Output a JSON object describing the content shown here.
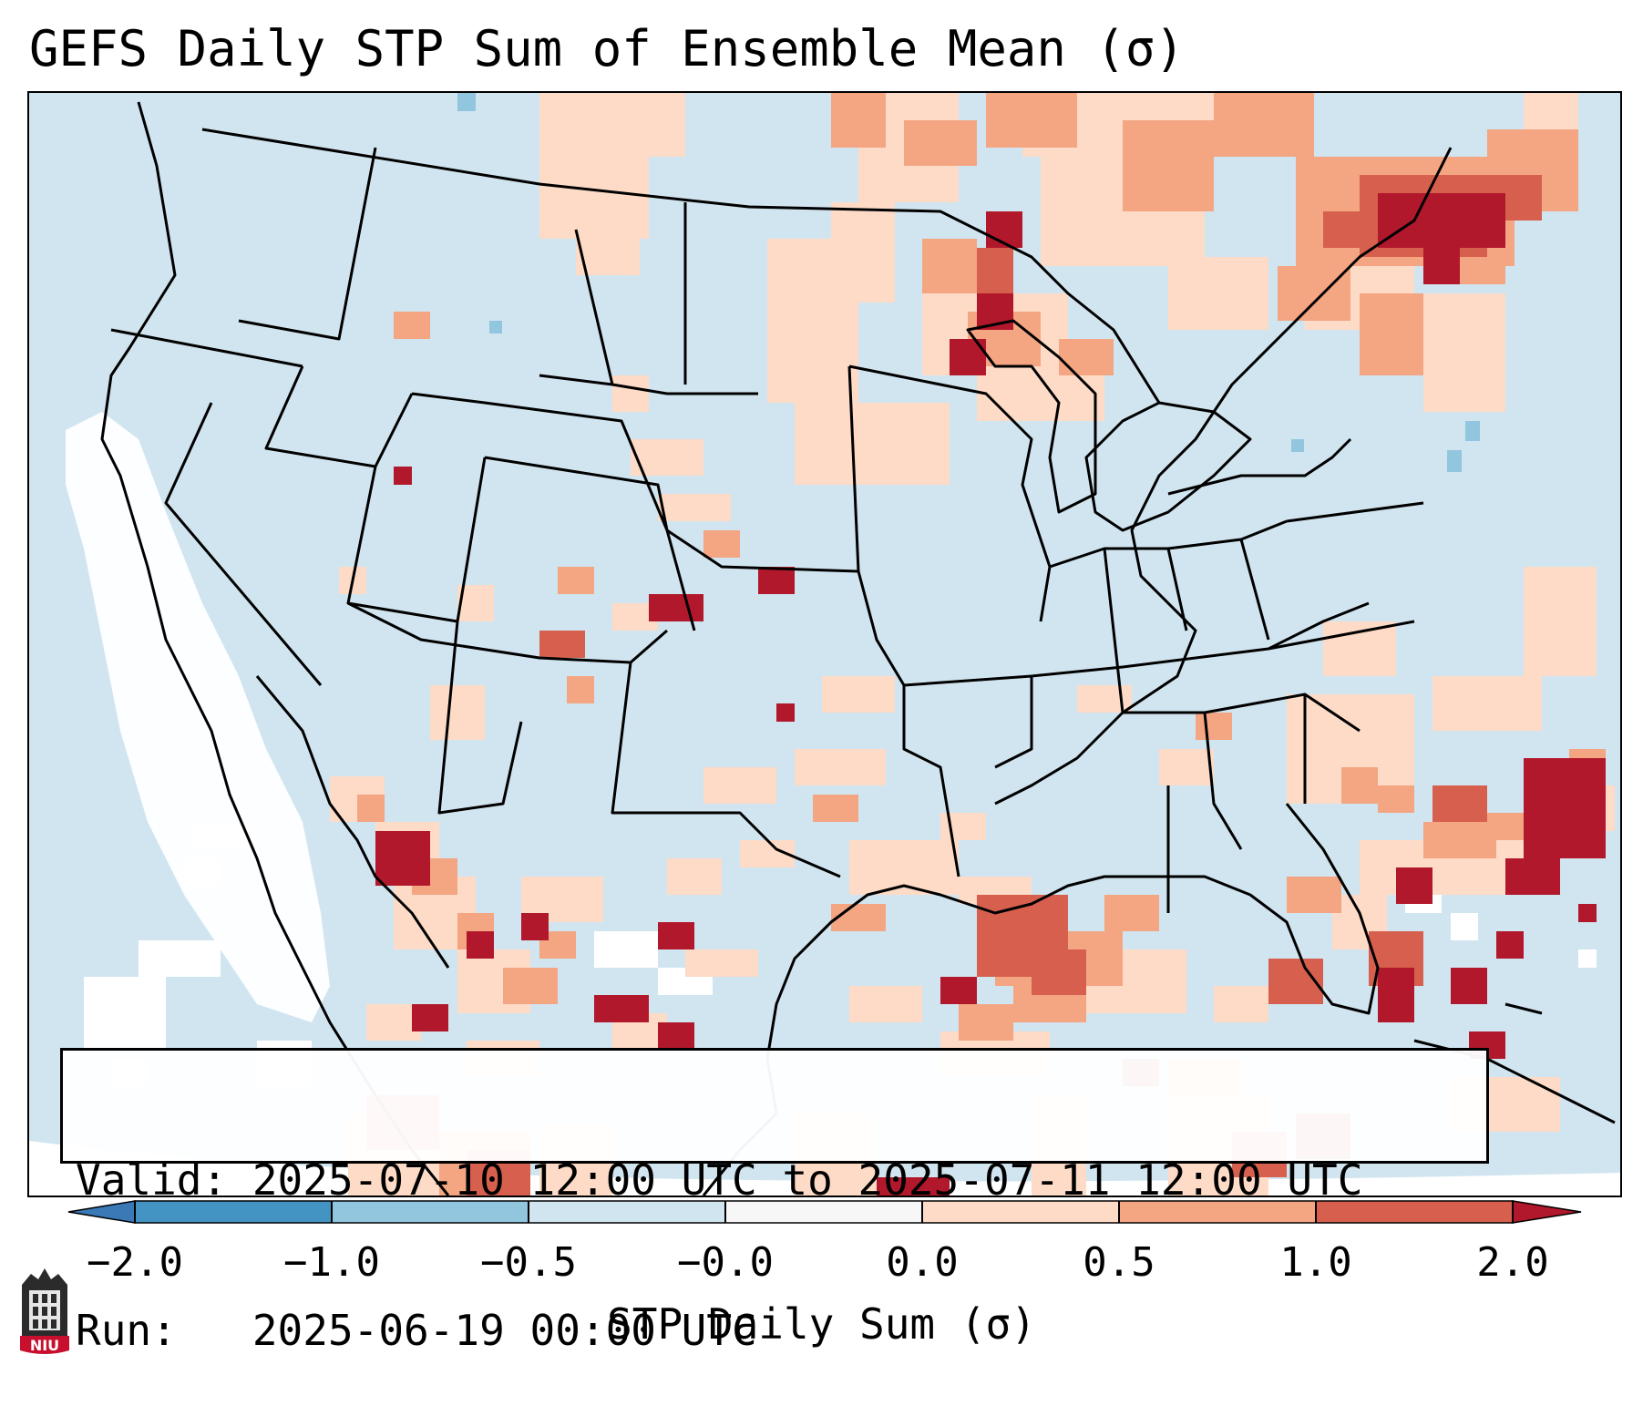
{
  "title": "GEFS Daily STP Sum of Ensemble Mean (σ)",
  "info": {
    "valid_line": "Valid: 2025-07-10 12:00 UTC to 2025-07-11 12:00 UTC",
    "run_line": "Run:   2025-06-19 00:00 UTC"
  },
  "colorbar": {
    "label": "STP Daily Sum (σ)",
    "ticks": [
      "−2.0",
      "−1.0",
      "−0.5",
      "−0.0",
      "0.0",
      "0.5",
      "1.0",
      "2.0"
    ],
    "colors": {
      "extend_low": "#3a78b6",
      "neg_2_to_1": "#4393c3",
      "neg_1_to_05": "#92c5de",
      "neg_05_to_0": "#d1e5f0",
      "zero": "#f7f7f7",
      "pos_0_to_05": "#fddbc7",
      "pos_05_to_1": "#f4a582",
      "pos_1_to_2": "#d6604d",
      "extend_high": "#b2182b"
    }
  },
  "map_colors": {
    "background": "#d1e5f0",
    "outline": "#000000",
    "low_anomaly": "#fddbc7",
    "moderate_anomaly": "#f4a582",
    "high_anomaly": "#d6604d",
    "extreme_anomaly": "#b2182b",
    "negative_anomaly": "#92c5de",
    "missing": "#ffffff"
  },
  "logo": {
    "text": "NIU"
  }
}
